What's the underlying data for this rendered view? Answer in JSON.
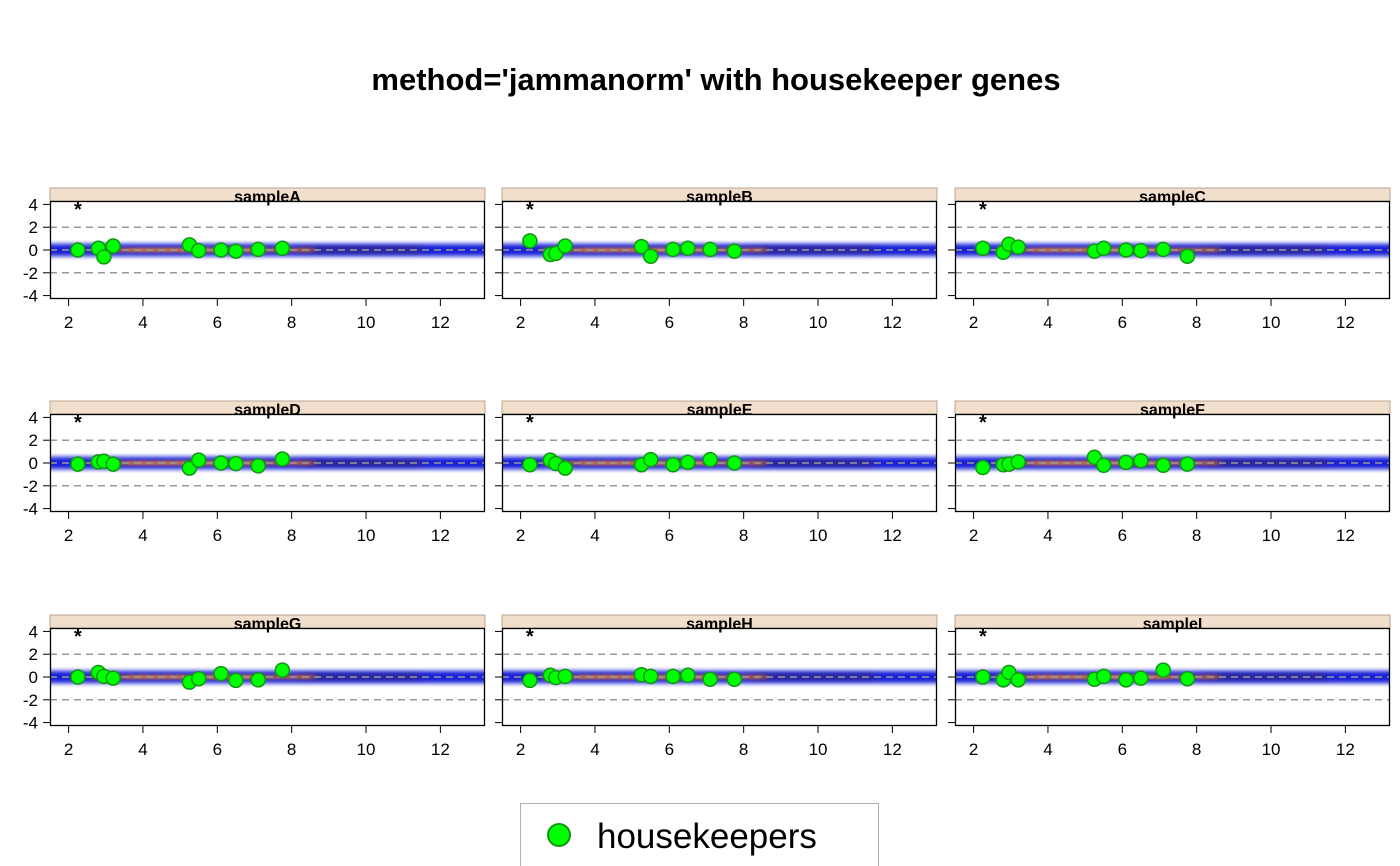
{
  "title": "method='jammanorm' with housekeeper genes",
  "chart_data": {
    "type": "scatter",
    "panels_layout": "3x3 grid",
    "xlim": [
      1.5,
      13.2
    ],
    "ylim": [
      -4.3,
      4.3
    ],
    "x_ticks": [
      2,
      4,
      6,
      8,
      10,
      12
    ],
    "y_ticks": [
      -4,
      -2,
      0,
      2,
      4
    ],
    "reference_lines": [
      -2,
      0,
      2
    ],
    "density_band": {
      "x_range": [
        1.5,
        13.2
      ],
      "halfwidth": 0.55
    },
    "marker_label": {
      "text": "*",
      "x": 2.25,
      "y": 3.85
    },
    "colors": {
      "strip": "#f1dfcc",
      "strip_border": "#b8a48f",
      "density_low": "#0a14d6",
      "density_high": "#f27a12",
      "point_fill": "#00ff00",
      "point_stroke": "#129612",
      "ref_line": "#9a9a9a"
    },
    "panels": [
      {
        "name": "sampleA",
        "housekeepers": [
          [
            2.25,
            0.0
          ],
          [
            2.8,
            0.15
          ],
          [
            2.95,
            -0.6
          ],
          [
            3.2,
            0.35
          ],
          [
            5.25,
            0.45
          ],
          [
            5.5,
            -0.05
          ],
          [
            6.1,
            0.0
          ],
          [
            6.5,
            -0.1
          ],
          [
            7.1,
            0.05
          ],
          [
            7.75,
            0.15
          ]
        ]
      },
      {
        "name": "sampleB",
        "housekeepers": [
          [
            2.25,
            0.8
          ],
          [
            2.8,
            -0.4
          ],
          [
            2.95,
            -0.3
          ],
          [
            3.2,
            0.35
          ],
          [
            5.25,
            0.3
          ],
          [
            5.5,
            -0.55
          ],
          [
            6.1,
            0.05
          ],
          [
            6.5,
            0.15
          ],
          [
            7.1,
            0.05
          ],
          [
            7.75,
            -0.1
          ]
        ]
      },
      {
        "name": "sampleC",
        "housekeepers": [
          [
            2.25,
            0.15
          ],
          [
            2.8,
            -0.2
          ],
          [
            2.95,
            0.5
          ],
          [
            3.2,
            0.25
          ],
          [
            5.25,
            -0.1
          ],
          [
            5.5,
            0.15
          ],
          [
            6.1,
            0.0
          ],
          [
            6.5,
            -0.05
          ],
          [
            7.1,
            0.05
          ],
          [
            7.75,
            -0.55
          ]
        ]
      },
      {
        "name": "sampleD",
        "housekeepers": [
          [
            2.25,
            -0.1
          ],
          [
            2.8,
            0.1
          ],
          [
            2.95,
            0.15
          ],
          [
            3.2,
            -0.1
          ],
          [
            5.25,
            -0.45
          ],
          [
            5.5,
            0.25
          ],
          [
            6.1,
            0.0
          ],
          [
            6.5,
            -0.05
          ],
          [
            7.1,
            -0.25
          ],
          [
            7.75,
            0.35
          ]
        ]
      },
      {
        "name": "sampleE",
        "housekeepers": [
          [
            2.25,
            -0.15
          ],
          [
            2.8,
            0.25
          ],
          [
            2.95,
            -0.05
          ],
          [
            3.2,
            -0.45
          ],
          [
            5.25,
            -0.15
          ],
          [
            5.5,
            0.3
          ],
          [
            6.1,
            -0.15
          ],
          [
            6.5,
            0.05
          ],
          [
            7.1,
            0.3
          ],
          [
            7.75,
            0.0
          ]
        ]
      },
      {
        "name": "sampleF",
        "housekeepers": [
          [
            2.25,
            -0.4
          ],
          [
            2.8,
            -0.15
          ],
          [
            2.95,
            -0.1
          ],
          [
            3.2,
            0.1
          ],
          [
            5.25,
            0.5
          ],
          [
            5.5,
            -0.2
          ],
          [
            6.1,
            0.05
          ],
          [
            6.5,
            0.2
          ],
          [
            7.1,
            -0.2
          ],
          [
            7.75,
            -0.1
          ]
        ]
      },
      {
        "name": "sampleG",
        "housekeepers": [
          [
            2.25,
            0.0
          ],
          [
            2.8,
            0.4
          ],
          [
            2.95,
            0.05
          ],
          [
            3.2,
            -0.1
          ],
          [
            5.25,
            -0.45
          ],
          [
            5.5,
            -0.15
          ],
          [
            6.1,
            0.3
          ],
          [
            6.5,
            -0.3
          ],
          [
            7.1,
            -0.25
          ],
          [
            7.75,
            0.6
          ]
        ]
      },
      {
        "name": "sampleH",
        "housekeepers": [
          [
            2.25,
            -0.3
          ],
          [
            2.8,
            0.15
          ],
          [
            2.95,
            -0.05
          ],
          [
            3.2,
            0.05
          ],
          [
            5.25,
            0.2
          ],
          [
            5.5,
            0.05
          ],
          [
            6.1,
            0.05
          ],
          [
            6.5,
            0.15
          ],
          [
            7.1,
            -0.2
          ],
          [
            7.75,
            -0.2
          ]
        ]
      },
      {
        "name": "sampleI",
        "housekeepers": [
          [
            2.25,
            0.0
          ],
          [
            2.8,
            -0.25
          ],
          [
            2.95,
            0.4
          ],
          [
            3.2,
            -0.25
          ],
          [
            5.25,
            -0.2
          ],
          [
            5.5,
            0.05
          ],
          [
            6.1,
            -0.25
          ],
          [
            6.5,
            -0.1
          ],
          [
            7.1,
            0.6
          ],
          [
            7.75,
            -0.15
          ]
        ]
      }
    ],
    "legend": {
      "label": "housekeepers",
      "placement": "bottom-center"
    }
  }
}
